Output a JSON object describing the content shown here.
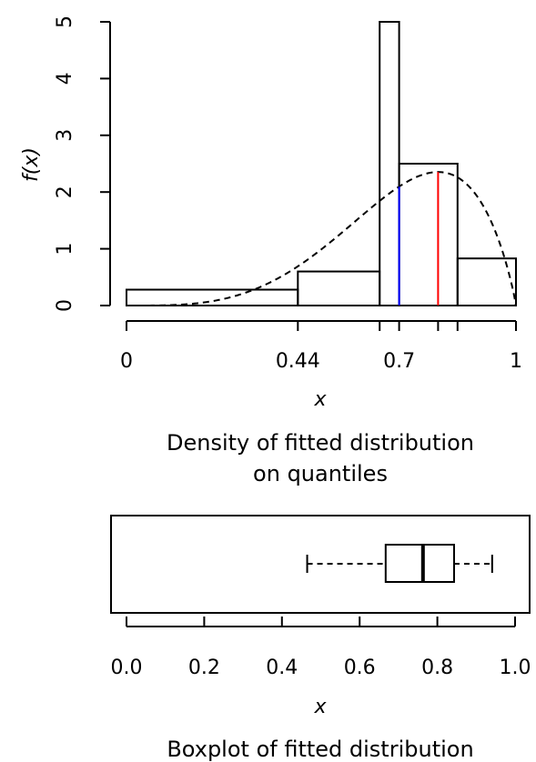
{
  "chart_data": [
    {
      "type": "histogram",
      "title": "Density of fitted distribution\non quantiles",
      "title_lines": [
        "Density of fitted distribution",
        "on quantiles"
      ],
      "xlabel": "x",
      "ylabel": "f(x)",
      "xlim": [
        0,
        1
      ],
      "ylim": [
        0,
        5
      ],
      "x_ticks": [
        0,
        0.44,
        0.65,
        0.7,
        0.8,
        0.85,
        1
      ],
      "x_tick_labels": [
        {
          "value": 0,
          "label": "0"
        },
        {
          "value": 0.44,
          "label": "0.44"
        },
        {
          "value": 0.7,
          "label": "0.7"
        },
        {
          "value": 1,
          "label": "1"
        }
      ],
      "y_ticks": [
        0,
        1,
        2,
        3,
        4,
        5
      ],
      "bins": [
        {
          "from": 0,
          "to": 0.44,
          "density": 0.28
        },
        {
          "from": 0.44,
          "to": 0.65,
          "density": 0.6
        },
        {
          "from": 0.65,
          "to": 0.7,
          "density": 5.0
        },
        {
          "from": 0.7,
          "to": 0.85,
          "density": 2.5
        },
        {
          "from": 0.85,
          "to": 1.0,
          "density": 0.83
        }
      ],
      "density_curve": {
        "style": "dashed",
        "shape": "beta",
        "alpha": 4.6,
        "beta": 1.9
      },
      "vertical_lines": [
        {
          "x": 0.7,
          "color": "#0000ff"
        },
        {
          "x": 0.8,
          "color": "#ff0000"
        }
      ]
    },
    {
      "type": "boxplot",
      "title": "Boxplot of fitted distribution",
      "xlabel": "x",
      "xlim": [
        0,
        1
      ],
      "x_ticks": [
        0.0,
        0.2,
        0.4,
        0.6,
        0.8,
        1.0
      ],
      "x_tick_labels": [
        "0.0",
        "0.2",
        "0.4",
        "0.6",
        "0.8",
        "1.0"
      ],
      "whisker_low": 0.465,
      "q1": 0.667,
      "median": 0.763,
      "q3": 0.843,
      "whisker_high": 0.941
    }
  ]
}
